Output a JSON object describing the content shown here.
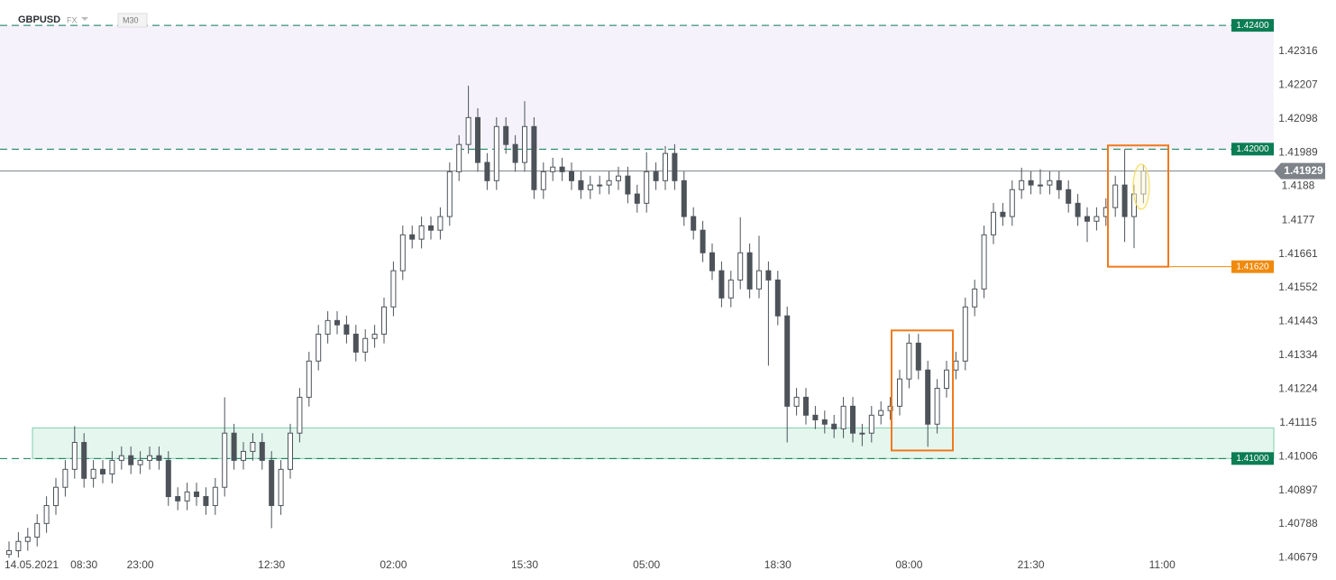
{
  "chart_data": {
    "type": "candlestick",
    "symbol": "GBPUSD",
    "market": "FX",
    "timeframe": "M30",
    "up_color": "#ffffff",
    "down_color": "#4d5359",
    "ylim": [
      1.40689,
      1.42482
    ],
    "yticks": [
      1.42316,
      1.42207,
      1.42098,
      1.41989,
      1.4188,
      1.4177,
      1.41661,
      1.41552,
      1.41443,
      1.41334,
      1.41224,
      1.41115,
      1.41006,
      1.40897,
      1.40788,
      1.40679
    ],
    "categories": [
      null,
      null,
      null,
      "14.05.2021",
      null,
      null,
      null,
      null,
      "08:30",
      null,
      null,
      null,
      null,
      null,
      "23:00",
      null,
      null,
      null,
      null,
      null,
      null,
      null,
      null,
      null,
      null,
      null,
      null,
      null,
      "12:30",
      null,
      null,
      null,
      null,
      null,
      null,
      null,
      null,
      null,
      null,
      null,
      null,
      "02:00",
      null,
      null,
      null,
      null,
      null,
      null,
      null,
      null,
      null,
      null,
      null,
      null,
      null,
      "15:30",
      null,
      null,
      null,
      null,
      null,
      null,
      null,
      null,
      null,
      null,
      null,
      null,
      "05:00",
      null,
      null,
      null,
      null,
      null,
      null,
      null,
      null,
      null,
      null,
      null,
      null,
      null,
      "18:30",
      null,
      null,
      null,
      null,
      null,
      null,
      null,
      null,
      null,
      null,
      null,
      null,
      null,
      "08:00",
      null,
      null,
      null,
      null,
      null,
      null,
      null,
      null,
      null,
      null,
      null,
      null,
      "21:30",
      null,
      null,
      null,
      null,
      null,
      null,
      null,
      null,
      null,
      null,
      null,
      null,
      null,
      "11:00"
    ],
    "candles": [
      [
        1.4069,
        1.40732,
        1.40679,
        1.40702
      ],
      [
        1.40702,
        1.40762,
        1.4068,
        1.40732
      ],
      [
        1.40732,
        1.40776,
        1.40702,
        1.40746
      ],
      [
        1.40746,
        1.4082,
        1.40716,
        1.4079
      ],
      [
        1.4079,
        1.40878,
        1.4076,
        1.40848
      ],
      [
        1.40848,
        1.40937,
        1.40818,
        1.40907
      ],
      [
        1.40907,
        1.40995,
        1.40877,
        1.40965
      ],
      [
        1.40965,
        1.41105,
        1.40935,
        1.41052
      ],
      [
        1.41052,
        1.41082,
        1.40906,
        1.40936
      ],
      [
        1.40936,
        1.40995,
        1.40906,
        1.40965
      ],
      [
        1.40965,
        1.40995,
        1.4092,
        1.4095
      ],
      [
        1.4095,
        1.41024,
        1.4092,
        1.40994
      ],
      [
        1.40994,
        1.41039,
        1.40964,
        1.41009
      ],
      [
        1.41009,
        1.41039,
        1.4095,
        1.4098
      ],
      [
        1.4098,
        1.41024,
        1.4095,
        1.40994
      ],
      [
        1.40994,
        1.41039,
        1.40964,
        1.41009
      ],
      [
        1.41009,
        1.41039,
        1.40964,
        1.40994
      ],
      [
        1.40994,
        1.41024,
        1.40847,
        1.40877
      ],
      [
        1.40877,
        1.40907,
        1.40833,
        1.40863
      ],
      [
        1.40863,
        1.40922,
        1.40833,
        1.40892
      ],
      [
        1.40892,
        1.40922,
        1.40847,
        1.40877
      ],
      [
        1.40877,
        1.40907,
        1.40818,
        1.40848
      ],
      [
        1.40848,
        1.40937,
        1.40818,
        1.40907
      ],
      [
        1.40907,
        1.41198,
        1.40877,
        1.41082
      ],
      [
        1.41082,
        1.41112,
        1.40964,
        1.40994
      ],
      [
        1.40994,
        1.41053,
        1.40964,
        1.41023
      ],
      [
        1.41023,
        1.41082,
        1.40993,
        1.41052
      ],
      [
        1.41052,
        1.41082,
        1.40964,
        1.40994
      ],
      [
        1.40994,
        1.41024,
        1.40775,
        1.40848
      ],
      [
        1.40848,
        1.40995,
        1.40818,
        1.40965
      ],
      [
        1.40965,
        1.41112,
        1.40935,
        1.41082
      ],
      [
        1.41082,
        1.41228,
        1.41052,
        1.41198
      ],
      [
        1.41198,
        1.41345,
        1.41168,
        1.41315
      ],
      [
        1.41315,
        1.41432,
        1.41285,
        1.41402
      ],
      [
        1.41402,
        1.41476,
        1.41372,
        1.41446
      ],
      [
        1.41446,
        1.41476,
        1.41402,
        1.41432
      ],
      [
        1.41432,
        1.41462,
        1.41372,
        1.41402
      ],
      [
        1.41402,
        1.41432,
        1.41314,
        1.41344
      ],
      [
        1.41344,
        1.41418,
        1.41314,
        1.41388
      ],
      [
        1.41388,
        1.41432,
        1.41358,
        1.41402
      ],
      [
        1.41402,
        1.4152,
        1.41372,
        1.4149
      ],
      [
        1.4149,
        1.41637,
        1.4146,
        1.41607
      ],
      [
        1.41607,
        1.41753,
        1.41577,
        1.41723
      ],
      [
        1.41723,
        1.41753,
        1.41679,
        1.41709
      ],
      [
        1.41709,
        1.41782,
        1.41679,
        1.41752
      ],
      [
        1.41752,
        1.41782,
        1.41708,
        1.41738
      ],
      [
        1.41738,
        1.41812,
        1.41708,
        1.41782
      ],
      [
        1.41782,
        1.41957,
        1.41752,
        1.41927
      ],
      [
        1.41927,
        1.42045,
        1.41897,
        1.42015
      ],
      [
        1.42015,
        1.42205,
        1.41985,
        1.42102
      ],
      [
        1.42102,
        1.42132,
        1.41927,
        1.41957
      ],
      [
        1.41957,
        1.41987,
        1.41868,
        1.41898
      ],
      [
        1.41898,
        1.42103,
        1.41868,
        1.42073
      ],
      [
        1.42073,
        1.42103,
        1.41985,
        1.42015
      ],
      [
        1.42015,
        1.42045,
        1.41927,
        1.41957
      ],
      [
        1.41957,
        1.42155,
        1.41927,
        1.42073
      ],
      [
        1.42073,
        1.42103,
        1.41839,
        1.41869
      ],
      [
        1.41869,
        1.41957,
        1.41839,
        1.41927
      ],
      [
        1.41927,
        1.41972,
        1.41897,
        1.41942
      ],
      [
        1.41942,
        1.41972,
        1.41897,
        1.41927
      ],
      [
        1.41927,
        1.41957,
        1.41868,
        1.41898
      ],
      [
        1.41898,
        1.41928,
        1.41839,
        1.41869
      ],
      [
        1.41869,
        1.41914,
        1.41839,
        1.41884
      ],
      [
        1.41884,
        1.41914,
        1.41854,
        1.41884
      ],
      [
        1.41884,
        1.41928,
        1.41854,
        1.41898
      ],
      [
        1.41898,
        1.41943,
        1.41868,
        1.41913
      ],
      [
        1.41913,
        1.41943,
        1.41825,
        1.41855
      ],
      [
        1.41855,
        1.41885,
        1.41795,
        1.41825
      ],
      [
        1.41825,
        1.4199,
        1.41795,
        1.41927
      ],
      [
        1.41927,
        1.41957,
        1.41868,
        1.41898
      ],
      [
        1.41898,
        1.4201,
        1.41868,
        1.41986
      ],
      [
        1.41986,
        1.42016,
        1.41868,
        1.41898
      ],
      [
        1.41898,
        1.41928,
        1.41752,
        1.41782
      ],
      [
        1.41782,
        1.41812,
        1.41708,
        1.41738
      ],
      [
        1.41738,
        1.41768,
        1.41635,
        1.41665
      ],
      [
        1.41665,
        1.41695,
        1.41577,
        1.41607
      ],
      [
        1.41607,
        1.41637,
        1.41489,
        1.41519
      ],
      [
        1.41519,
        1.41607,
        1.41489,
        1.41577
      ],
      [
        1.41577,
        1.4178,
        1.41547,
        1.41665
      ],
      [
        1.41665,
        1.41695,
        1.41518,
        1.41548
      ],
      [
        1.41548,
        1.4172,
        1.41518,
        1.41607
      ],
      [
        1.41607,
        1.41637,
        1.413,
        1.41577
      ],
      [
        1.41577,
        1.41607,
        1.41431,
        1.41461
      ],
      [
        1.41461,
        1.41491,
        1.41052,
        1.41169
      ],
      [
        1.41169,
        1.41228,
        1.41139,
        1.41198
      ],
      [
        1.41198,
        1.41228,
        1.4111,
        1.4114
      ],
      [
        1.4114,
        1.4117,
        1.41095,
        1.41125
      ],
      [
        1.41125,
        1.41155,
        1.41081,
        1.41111
      ],
      [
        1.41111,
        1.41141,
        1.41066,
        1.41096
      ],
      [
        1.41096,
        1.41199,
        1.41066,
        1.41169
      ],
      [
        1.41169,
        1.41199,
        1.41052,
        1.41082
      ],
      [
        1.41082,
        1.41112,
        1.4104,
        1.41082
      ],
      [
        1.41082,
        1.4117,
        1.41052,
        1.4114
      ],
      [
        1.4114,
        1.41185,
        1.4111,
        1.41155
      ],
      [
        1.41155,
        1.41199,
        1.41125,
        1.41169
      ],
      [
        1.41169,
        1.41287,
        1.41139,
        1.41257
      ],
      [
        1.41257,
        1.41403,
        1.41227,
        1.41373
      ],
      [
        1.41373,
        1.41403,
        1.41256,
        1.41286
      ],
      [
        1.41286,
        1.41316,
        1.41038,
        1.41111
      ],
      [
        1.41111,
        1.41257,
        1.41081,
        1.41227
      ],
      [
        1.41227,
        1.41316,
        1.41197,
        1.41286
      ],
      [
        1.41286,
        1.41345,
        1.41256,
        1.41315
      ],
      [
        1.41315,
        1.4152,
        1.41285,
        1.4149
      ],
      [
        1.4149,
        1.41578,
        1.4146,
        1.41548
      ],
      [
        1.41548,
        1.41753,
        1.41518,
        1.41723
      ],
      [
        1.41723,
        1.41826,
        1.41693,
        1.41796
      ],
      [
        1.41796,
        1.41826,
        1.41752,
        1.41782
      ],
      [
        1.41782,
        1.41899,
        1.41752,
        1.41869
      ],
      [
        1.41869,
        1.4194,
        1.41839,
        1.41898
      ],
      [
        1.41898,
        1.41928,
        1.41854,
        1.41884
      ],
      [
        1.41884,
        1.41935,
        1.41854,
        1.41884
      ],
      [
        1.41884,
        1.41928,
        1.41854,
        1.41898
      ],
      [
        1.41898,
        1.41928,
        1.41839,
        1.41869
      ],
      [
        1.41869,
        1.41899,
        1.41795,
        1.41825
      ],
      [
        1.41825,
        1.41855,
        1.41752,
        1.41782
      ],
      [
        1.41782,
        1.41812,
        1.417,
        1.41767
      ],
      [
        1.41767,
        1.41812,
        1.41737,
        1.41782
      ],
      [
        1.41782,
        1.41841,
        1.41752,
        1.41811
      ],
      [
        1.41811,
        1.41914,
        1.41781,
        1.41884
      ],
      [
        1.41884,
        1.42,
        1.417,
        1.41782
      ],
      [
        1.41782,
        1.41885,
        1.4168,
        1.41855
      ],
      [
        1.41855,
        1.4195,
        1.41825,
        1.41929
      ],
      null,
      null
    ],
    "levels": [
      {
        "value": 1.424,
        "label": "1.42400",
        "color": "#0a7d55"
      },
      {
        "value": 1.42,
        "label": "1.42000",
        "color": "#0a7d55"
      },
      {
        "value": 1.41,
        "label": "1.41000",
        "color": "#0a7d55"
      }
    ],
    "orange_level": {
      "value": 1.4162,
      "label": "1.41620",
      "color": "#f08a0c"
    },
    "current_price": {
      "value": 1.41929,
      "label": "1.41929",
      "color": "#7d8388"
    },
    "zones": [
      [
        1.42,
        1.424
      ],
      [
        1.41,
        1.41099
      ]
    ],
    "zone_colors": [
      "#f5f2fb",
      "#e4f6ee"
    ],
    "boxes": [
      [
        1.41026,
        1.41414
      ],
      [
        1.4162,
        1.42012
      ]
    ],
    "box_color": "#f07a1c"
  }
}
